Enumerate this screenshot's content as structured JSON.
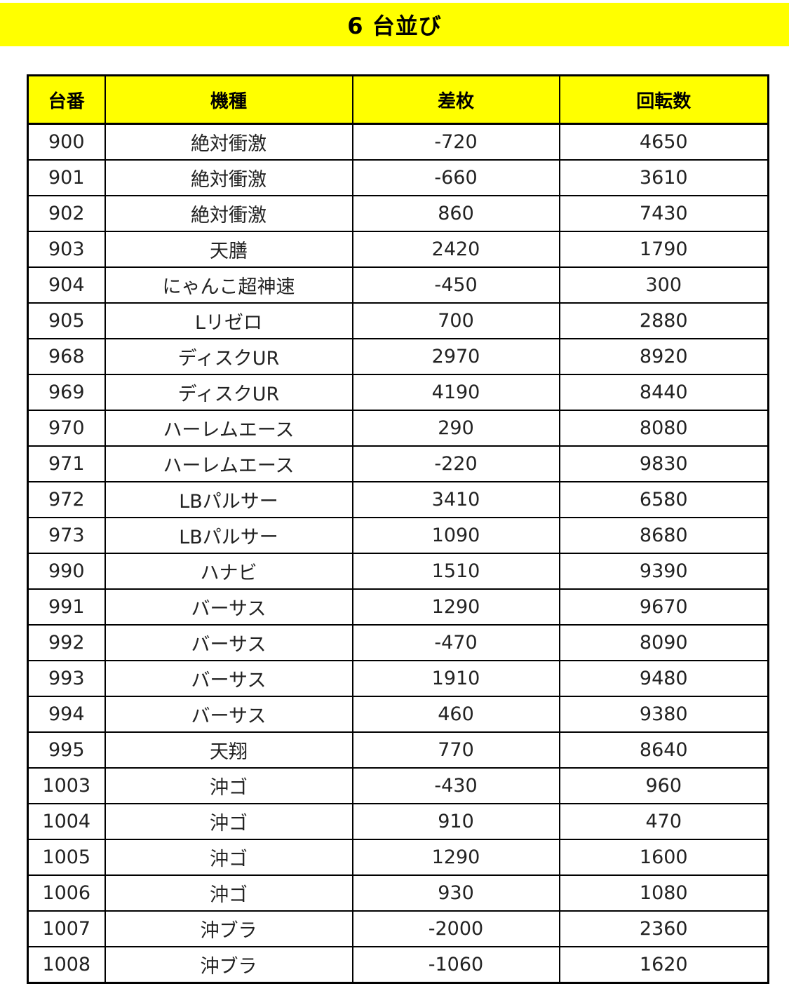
{
  "title": "6 台並び",
  "colors": {
    "header_background": "#ffff00",
    "border": "#000000",
    "text": "#222222"
  },
  "table": {
    "headers": [
      "台番",
      "機種",
      "差枚",
      "回転数"
    ],
    "rows": [
      [
        "900",
        "絶対衝激",
        "-720",
        "4650"
      ],
      [
        "901",
        "絶対衝激",
        "-660",
        "3610"
      ],
      [
        "902",
        "絶対衝激",
        "860",
        "7430"
      ],
      [
        "903",
        "天膳",
        "2420",
        "1790"
      ],
      [
        "904",
        "にゃんこ超神速",
        "-450",
        "300"
      ],
      [
        "905",
        "Lリゼロ",
        "700",
        "2880"
      ],
      [
        "968",
        "ディスクUR",
        "2970",
        "8920"
      ],
      [
        "969",
        "ディスクUR",
        "4190",
        "8440"
      ],
      [
        "970",
        "ハーレムエース",
        "290",
        "8080"
      ],
      [
        "971",
        "ハーレムエース",
        "-220",
        "9830"
      ],
      [
        "972",
        "LBパルサー",
        "3410",
        "6580"
      ],
      [
        "973",
        "LBパルサー",
        "1090",
        "8680"
      ],
      [
        "990",
        "ハナビ",
        "1510",
        "9390"
      ],
      [
        "991",
        "バーサス",
        "1290",
        "9670"
      ],
      [
        "992",
        "バーサス",
        "-470",
        "8090"
      ],
      [
        "993",
        "バーサス",
        "1910",
        "9480"
      ],
      [
        "994",
        "バーサス",
        "460",
        "9380"
      ],
      [
        "995",
        "天翔",
        "770",
        "8640"
      ],
      [
        "1003",
        "沖ゴ",
        "-430",
        "960"
      ],
      [
        "1004",
        "沖ゴ",
        "910",
        "470"
      ],
      [
        "1005",
        "沖ゴ",
        "1290",
        "1600"
      ],
      [
        "1006",
        "沖ゴ",
        "930",
        "1080"
      ],
      [
        "1007",
        "沖ブラ",
        "-2000",
        "2360"
      ],
      [
        "1008",
        "沖ブラ",
        "-1060",
        "1620"
      ]
    ]
  }
}
